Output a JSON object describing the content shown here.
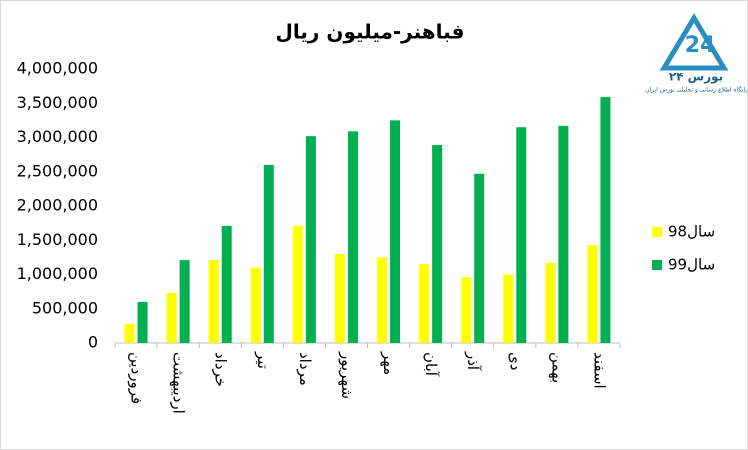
{
  "chart_data": {
    "type": "bar",
    "title": "فباهنر-میلیون ریال",
    "logo_text": "بورس ۲۴",
    "logo_subtitle": "پایگاه اطلاع رسانی و تحلیلی بورس ایران",
    "categories": [
      "فروردین",
      "اردیبهشت",
      "خرداد",
      "تیر",
      "مرداد",
      "شهریور",
      "مهر",
      "آبان",
      "آذر",
      "دی",
      "بهمن",
      "اسفند"
    ],
    "series": [
      {
        "name": "سال98",
        "color": "#ffff00",
        "values": [
          280000,
          730000,
          1210000,
          1100000,
          1710000,
          1300000,
          1250000,
          1150000,
          960000,
          1000000,
          1170000,
          1430000
        ]
      },
      {
        "name": "سال99",
        "color": "#00b050",
        "values": [
          600000,
          1210000,
          1710000,
          2600000,
          3020000,
          3090000,
          3250000,
          2890000,
          2470000,
          3150000,
          3170000,
          3590000
        ]
      }
    ],
    "ylim": [
      0,
      4000000
    ],
    "yticks": [
      0,
      {
        "value": 500000,
        "label": "500,000"
      },
      {
        "value": 1000000,
        "label": "1,000,000"
      },
      {
        "value": 1500000,
        "label": "1,500,000"
      },
      {
        "value": 2000000,
        "label": "2,000,000"
      },
      {
        "value": 2500000,
        "label": "2,500,000"
      },
      {
        "value": 3000000,
        "label": "3,000,000"
      },
      {
        "value": 3500000,
        "label": "3,500,000"
      },
      {
        "value": 4000000,
        "label": "4,000,000"
      }
    ],
    "grid": false,
    "legend": "right"
  }
}
